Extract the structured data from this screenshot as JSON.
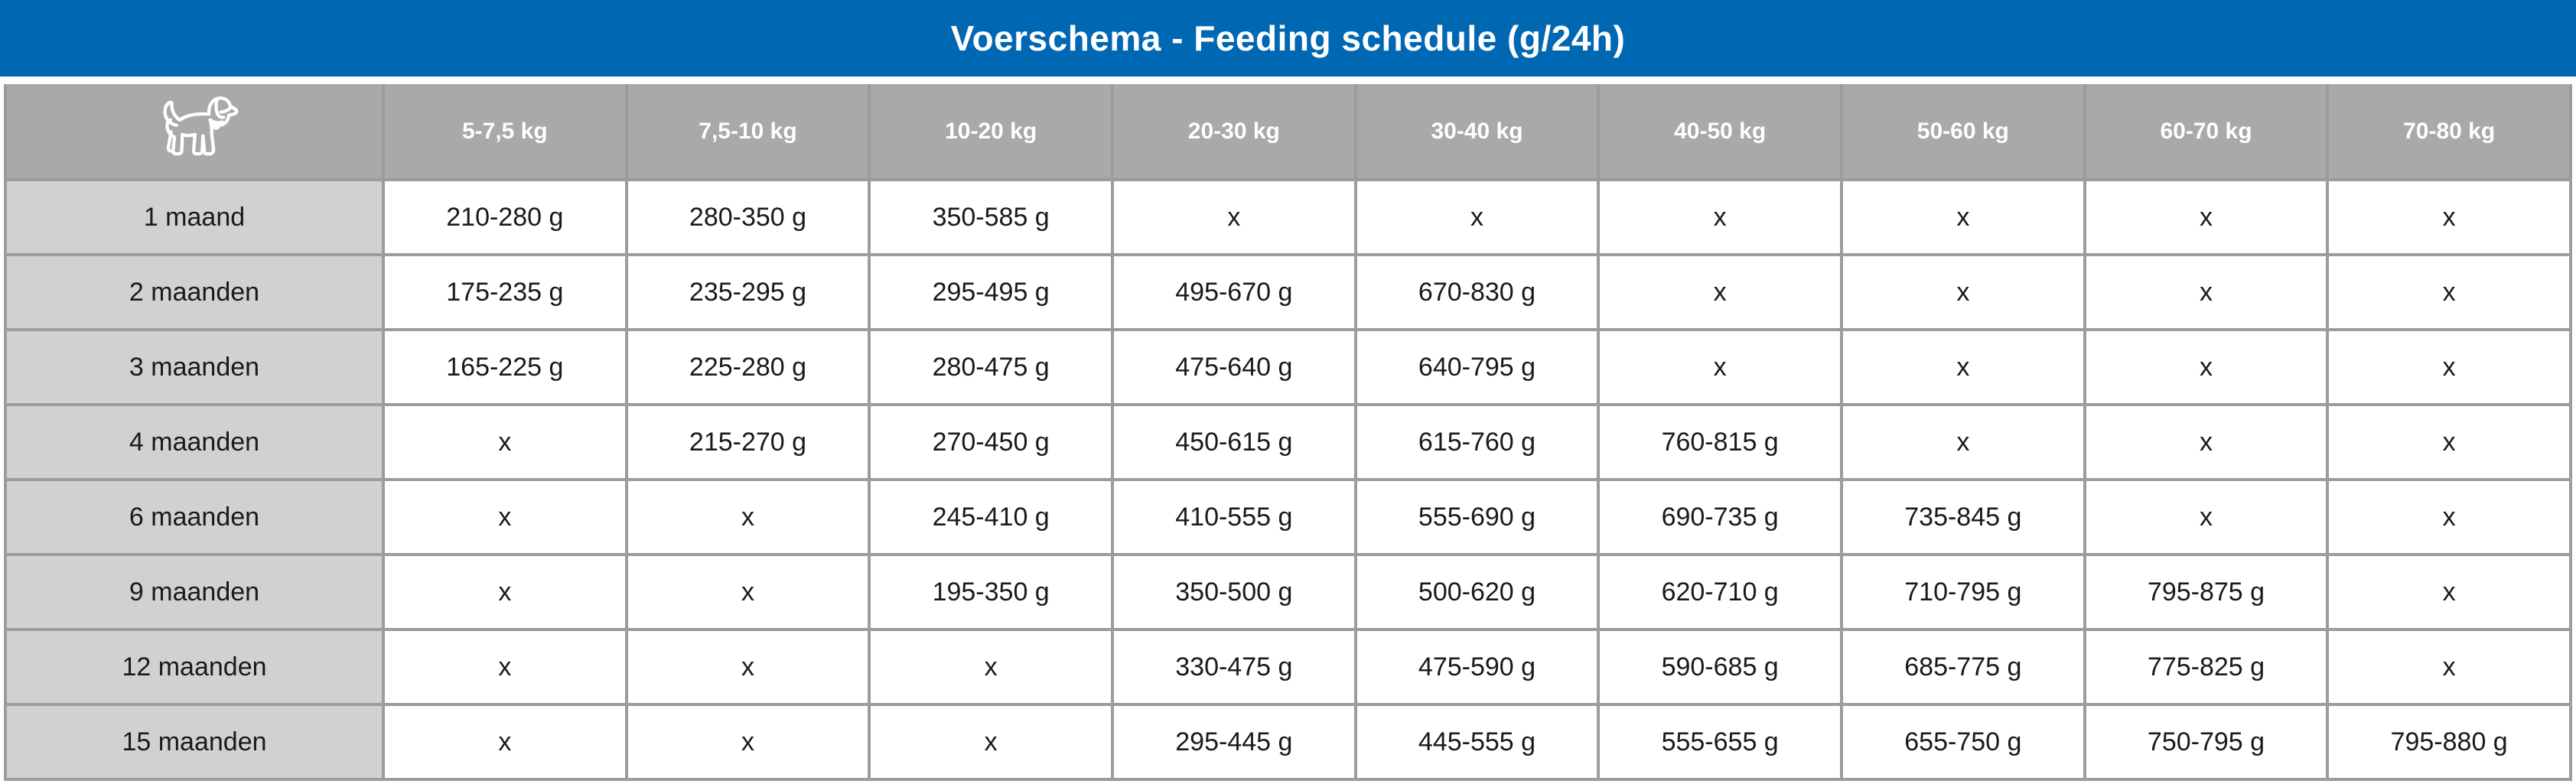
{
  "colors": {
    "title_bg": "#0068B3",
    "header_bg": "#A9A9A9",
    "row_label_bg": "#D1D1D1",
    "grid_line": "#9C9C9C",
    "cell_bg": "#FFFFFF",
    "header_text": "#FFFFFF",
    "cell_text": "#1A1A1A"
  },
  "corner_icon": "dog-icon",
  "empty_marker": "x",
  "chart_data": {
    "type": "table",
    "title": "Voerschema - Feeding schedule (g/24h)",
    "columns": [
      "5-7,5 kg",
      "7,5-10 kg",
      "10-20 kg",
      "20-30 kg",
      "30-40 kg",
      "40-50 kg",
      "50-60 kg",
      "60-70 kg",
      "70-80 kg"
    ],
    "rows": [
      {
        "label": "1 maand",
        "values": [
          "210-280 g",
          "280-350 g",
          "350-585 g",
          "x",
          "x",
          "x",
          "x",
          "x",
          "x"
        ]
      },
      {
        "label": "2 maanden",
        "values": [
          "175-235 g",
          "235-295 g",
          "295-495 g",
          "495-670 g",
          "670-830 g",
          "x",
          "x",
          "x",
          "x"
        ]
      },
      {
        "label": "3 maanden",
        "values": [
          "165-225 g",
          "225-280 g",
          "280-475 g",
          "475-640 g",
          "640-795 g",
          "x",
          "x",
          "x",
          "x"
        ]
      },
      {
        "label": "4 maanden",
        "values": [
          "x",
          "215-270 g",
          "270-450 g",
          "450-615 g",
          "615-760 g",
          "760-815 g",
          "x",
          "x",
          "x"
        ]
      },
      {
        "label": "6 maanden",
        "values": [
          "x",
          "x",
          "245-410 g",
          "410-555 g",
          "555-690 g",
          "690-735 g",
          "735-845 g",
          "x",
          "x"
        ]
      },
      {
        "label": "9 maanden",
        "values": [
          "x",
          "x",
          "195-350 g",
          "350-500 g",
          "500-620 g",
          "620-710 g",
          "710-795 g",
          "795-875 g",
          "x"
        ]
      },
      {
        "label": "12 maanden",
        "values": [
          "x",
          "x",
          "x",
          "330-475 g",
          "475-590 g",
          "590-685 g",
          "685-775 g",
          "775-825 g",
          "x"
        ]
      },
      {
        "label": "15 maanden",
        "values": [
          "x",
          "x",
          "x",
          "295-445 g",
          "445-555 g",
          "555-655 g",
          "655-750 g",
          "750-795 g",
          "795-880 g"
        ]
      }
    ]
  }
}
